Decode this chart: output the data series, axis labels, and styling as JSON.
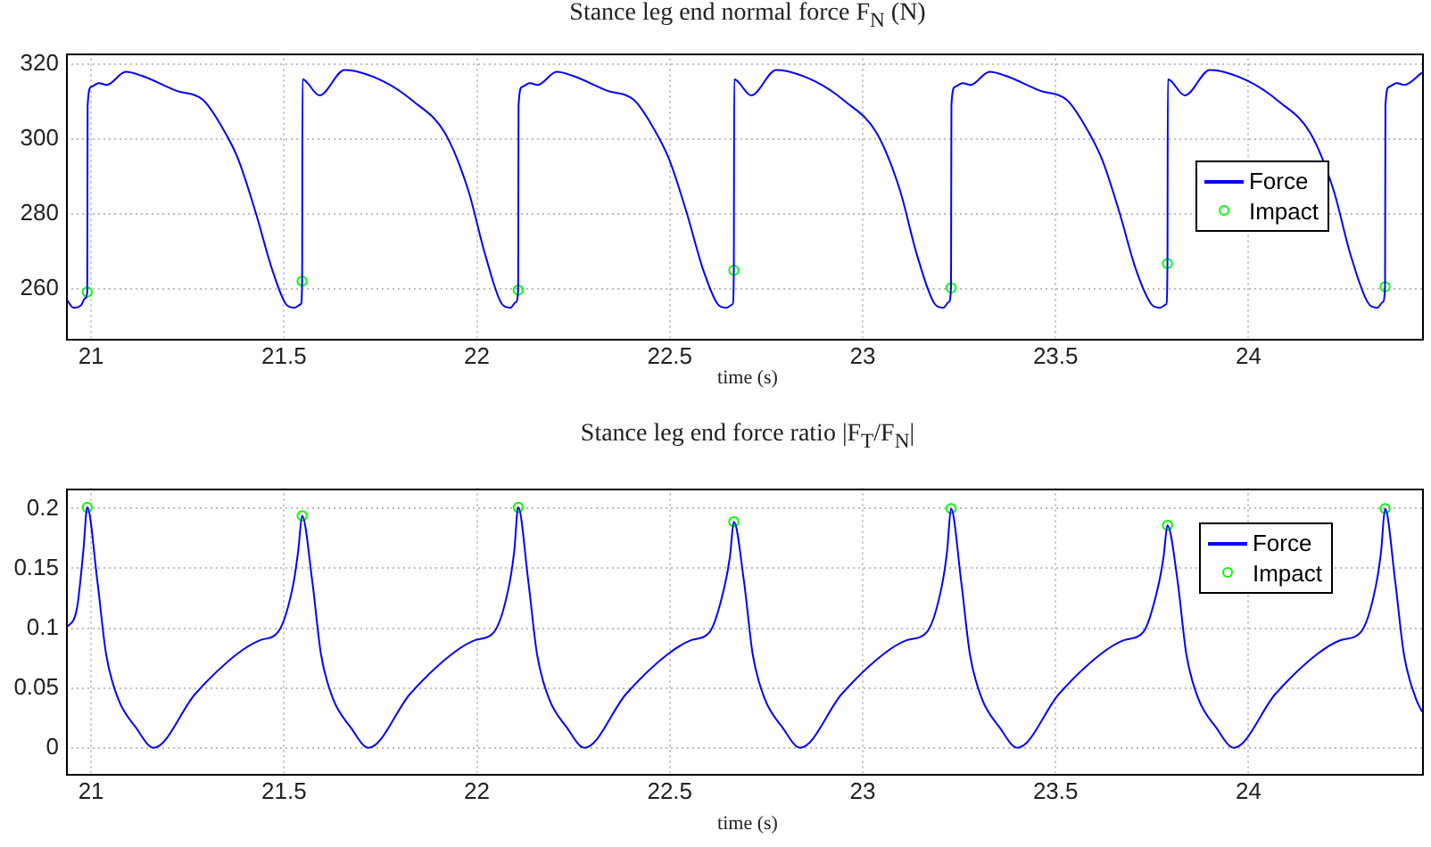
{
  "chart_data": [
    {
      "type": "line",
      "title": "Stance leg end normal force F$_{N}$ (N)",
      "xlabel": "time (s)",
      "xlim": [
        20.935,
        24.45
      ],
      "xticks": [
        21,
        21.5,
        22,
        22.5,
        23,
        23.5,
        24
      ],
      "ylim": [
        247,
        323
      ],
      "yticks": [
        260,
        280,
        300,
        320
      ],
      "grid": true,
      "legend": "right",
      "series": [
        {
          "name": "Force",
          "type": "line",
          "color": "#0000ff",
          "x": [
            20.936,
            20.955,
            20.975,
            20.984,
            20.99,
            20.991,
            21.0,
            21.02,
            21.04,
            21.09,
            21.13,
            21.22,
            21.29,
            21.335,
            21.38,
            21.425,
            21.47,
            21.505,
            21.527,
            21.544,
            21.547,
            21.548,
            21.592,
            21.657,
            21.757,
            21.837,
            21.917,
            21.977,
            22.022,
            22.065,
            22.087,
            22.101,
            22.107,
            22.108,
            22.117,
            22.137,
            22.157,
            22.207,
            22.247,
            22.337,
            22.407,
            22.452,
            22.497,
            22.542,
            22.587,
            22.624,
            22.646,
            22.663,
            22.666,
            22.667,
            22.711,
            22.776,
            22.876,
            22.956,
            23.036,
            23.096,
            23.141,
            23.187,
            23.209,
            23.223,
            23.229,
            23.23,
            23.239,
            23.259,
            23.279,
            23.329,
            23.369,
            23.459,
            23.529,
            23.574,
            23.619,
            23.664,
            23.709,
            23.748,
            23.77,
            23.787,
            23.79,
            23.791,
            23.835,
            23.9,
            24.0,
            24.08,
            24.16,
            24.22,
            24.265,
            24.312,
            24.334,
            24.348,
            24.354,
            24.355,
            24.364,
            24.384,
            24.404,
            24.45
          ],
          "values": [
            257.3,
            255,
            255.8,
            257.5,
            259.2,
            309,
            314,
            315,
            314.5,
            318,
            317,
            313,
            310.5,
            304,
            295,
            281,
            265,
            256,
            255,
            256,
            262.1,
            316,
            311.7,
            318.5,
            315.5,
            310,
            301.7,
            286.6,
            269,
            256,
            255,
            256.5,
            259.7,
            309,
            314,
            315,
            314.5,
            318,
            317,
            313,
            310.5,
            304,
            295,
            281,
            265,
            256,
            255,
            256,
            265,
            316,
            311.7,
            318.5,
            315.5,
            310,
            301.7,
            286.6,
            269,
            256,
            255,
            256.5,
            260.3,
            309,
            314,
            315,
            314.5,
            318,
            317,
            313,
            310.5,
            304,
            295,
            281,
            265,
            256,
            255,
            256,
            266.8,
            316,
            311.7,
            318.5,
            315.5,
            310,
            301.7,
            286.6,
            269,
            256,
            255,
            256.5,
            260.6,
            309,
            314,
            315,
            314.5,
            317.8
          ]
        },
        {
          "name": "Impact",
          "type": "scatter",
          "marker": "circle",
          "color": "#00ff00",
          "x": [
            20.99,
            21.547,
            22.107,
            22.666,
            23.229,
            23.79,
            24.354
          ],
          "values": [
            259.2,
            262.1,
            259.7,
            265,
            260.3,
            266.8,
            260.6
          ]
        }
      ]
    },
    {
      "type": "line",
      "title": "Stance leg end force ratio |F$_{T}$/F$_{N}$|",
      "xlabel": "time (s)",
      "xlim": [
        20.935,
        24.45
      ],
      "xticks": [
        21,
        21.5,
        22,
        22.5,
        23,
        23.5,
        24
      ],
      "ylim": [
        -0.021,
        0.217
      ],
      "yticks": [
        0,
        0.05,
        0.1,
        0.15,
        0.2
      ],
      "grid": true,
      "legend": "top right",
      "series": [
        {
          "name": "Force",
          "type": "line",
          "color": "#0000ff",
          "x": [
            20.935,
            20.963,
            20.98,
            20.99,
            21.016,
            21.039,
            21.07,
            21.116,
            21.162,
            21.27,
            21.377,
            21.439,
            21.485,
            21.523,
            21.537,
            21.547,
            21.573,
            21.596,
            21.627,
            21.673,
            21.719,
            21.827,
            21.934,
            21.996,
            22.045,
            22.083,
            22.097,
            22.107,
            22.133,
            22.156,
            22.187,
            22.233,
            22.279,
            22.387,
            22.494,
            22.556,
            22.604,
            22.642,
            22.656,
            22.666,
            22.692,
            22.715,
            22.746,
            22.792,
            22.838,
            22.946,
            23.053,
            23.115,
            23.167,
            23.205,
            23.219,
            23.229,
            23.255,
            23.278,
            23.309,
            23.355,
            23.401,
            23.509,
            23.616,
            23.678,
            23.728,
            23.766,
            23.78,
            23.79,
            23.816,
            23.839,
            23.87,
            23.916,
            23.962,
            24.07,
            24.177,
            24.239,
            24.292,
            24.33,
            24.344,
            24.354,
            24.38,
            24.403,
            24.434,
            24.45
          ],
          "values": [
            0.1,
            0.116,
            0.165,
            0.201,
            0.14,
            0.078,
            0.041,
            0.017,
            0,
            0.045,
            0.078,
            0.09,
            0.097,
            0.135,
            0.165,
            0.194,
            0.14,
            0.078,
            0.041,
            0.017,
            0,
            0.045,
            0.078,
            0.09,
            0.097,
            0.135,
            0.165,
            0.201,
            0.14,
            0.078,
            0.041,
            0.017,
            0,
            0.045,
            0.078,
            0.09,
            0.097,
            0.135,
            0.16,
            0.189,
            0.14,
            0.078,
            0.041,
            0.017,
            0,
            0.045,
            0.078,
            0.09,
            0.097,
            0.135,
            0.165,
            0.2,
            0.14,
            0.078,
            0.041,
            0.017,
            0,
            0.045,
            0.078,
            0.09,
            0.097,
            0.135,
            0.16,
            0.186,
            0.14,
            0.078,
            0.041,
            0.017,
            0,
            0.045,
            0.078,
            0.09,
            0.097,
            0.135,
            0.165,
            0.2,
            0.14,
            0.078,
            0.041,
            0.03
          ]
        },
        {
          "name": "Impact",
          "type": "scatter",
          "marker": "circle",
          "color": "#00ff00",
          "x": [
            20.99,
            21.547,
            22.107,
            22.666,
            23.229,
            23.79,
            24.354
          ],
          "values": [
            0.201,
            0.194,
            0.201,
            0.189,
            0.2,
            0.186,
            0.2
          ]
        }
      ]
    }
  ]
}
